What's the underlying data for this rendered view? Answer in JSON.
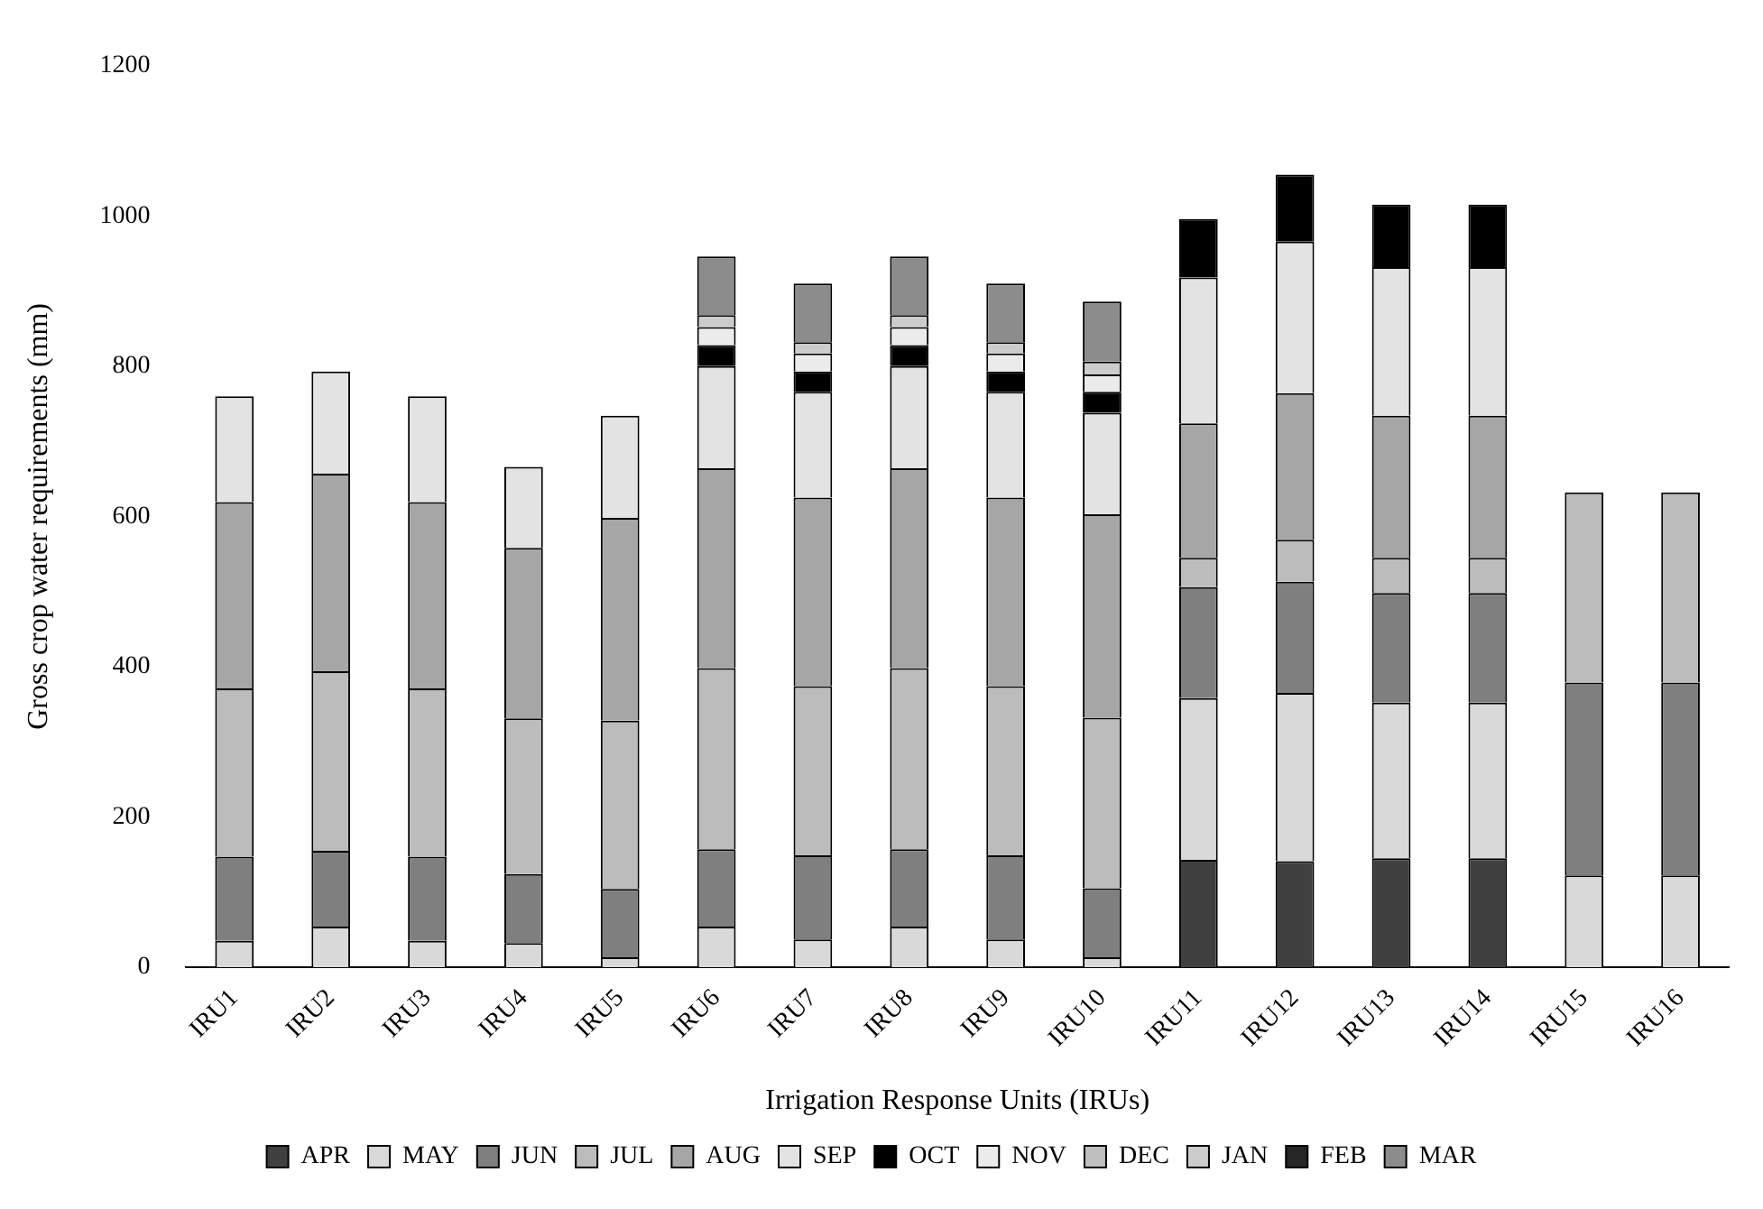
{
  "chart_data": {
    "type": "bar",
    "stacked": true,
    "xlabel": "Irrigation Response Units (IRUs)",
    "ylabel": "Gross crop water requirements (mm)",
    "categories": [
      "IRU1",
      "IRU2",
      "IRU3",
      "IRU4",
      "IRU5",
      "IRU6",
      "IRU7",
      "IRU8",
      "IRU9",
      "IRU10",
      "IRU11",
      "IRU12",
      "IRU13",
      "IRU14",
      "IRU15",
      "IRU16"
    ],
    "ylim": [
      0,
      1200
    ],
    "yticks": [
      0,
      200,
      400,
      600,
      800,
      1000,
      1200
    ],
    "grid": false,
    "legend": "bottom",
    "series": [
      {
        "name": "APR",
        "color": "#404040",
        "values": [
          null,
          null,
          null,
          null,
          null,
          null,
          null,
          null,
          null,
          null,
          143,
          141,
          145,
          145,
          null,
          null
        ]
      },
      {
        "name": "MAY",
        "color": "#d9d9d9",
        "values": [
          35,
          54,
          35,
          32,
          13,
          54,
          37,
          54,
          37,
          13,
          215,
          224,
          207,
          207,
          122,
          122
        ]
      },
      {
        "name": "JUN",
        "color": "#7f7f7f",
        "values": [
          112,
          101,
          112,
          92,
          91,
          103,
          112,
          103,
          112,
          92,
          148,
          148,
          146,
          146,
          257,
          257
        ]
      },
      {
        "name": "JUL",
        "color": "#bcbcbc",
        "values": [
          224,
          239,
          224,
          207,
          224,
          241,
          225,
          241,
          225,
          227,
          39,
          56,
          47,
          47,
          253,
          253
        ]
      },
      {
        "name": "AUG",
        "color": "#a6a6a6",
        "values": [
          248,
          263,
          248,
          227,
          270,
          266,
          251,
          266,
          251,
          271,
          179,
          195,
          189,
          189,
          null,
          null
        ]
      },
      {
        "name": "SEP",
        "color": "#e3e3e3",
        "values": [
          141,
          136,
          141,
          108,
          136,
          136,
          141,
          136,
          141,
          135,
          194,
          202,
          198,
          198,
          null,
          null
        ]
      },
      {
        "name": "OCT",
        "color": "#000000",
        "values": [
          null,
          null,
          null,
          null,
          null,
          28,
          27,
          28,
          27,
          28,
          78,
          89,
          83,
          83,
          null,
          null
        ]
      },
      {
        "name": "NOV",
        "color": "#ebebeb",
        "values": [
          null,
          null,
          null,
          null,
          null,
          24,
          24,
          24,
          24,
          23,
          null,
          null,
          null,
          null,
          null,
          null
        ]
      },
      {
        "name": "DEC",
        "color": "#bfbfbf",
        "values": [
          null,
          null,
          null,
          null,
          null,
          null,
          null,
          null,
          null,
          null,
          null,
          null,
          null,
          null,
          null,
          null
        ]
      },
      {
        "name": "JAN",
        "color": "#cccccc",
        "values": [
          null,
          null,
          null,
          null,
          null,
          16,
          15,
          16,
          15,
          17,
          null,
          null,
          null,
          null,
          null,
          null
        ]
      },
      {
        "name": "FEB",
        "color": "#262626",
        "values": [
          null,
          null,
          null,
          null,
          null,
          null,
          null,
          null,
          null,
          null,
          null,
          null,
          null,
          null,
          null,
          null
        ]
      },
      {
        "name": "MAR",
        "color": "#8c8c8c",
        "values": [
          null,
          null,
          null,
          null,
          null,
          78,
          78,
          78,
          78,
          80,
          null,
          null,
          null,
          null,
          null,
          null
        ]
      }
    ]
  }
}
